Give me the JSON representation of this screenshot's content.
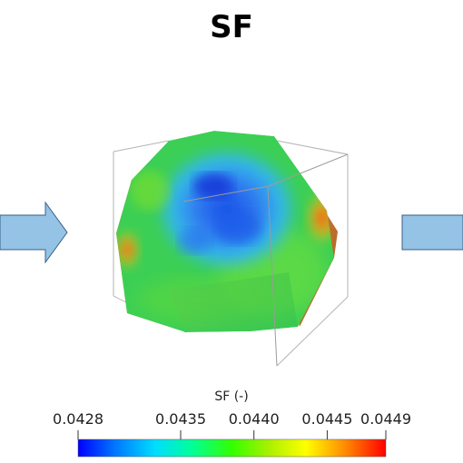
{
  "title": "SF",
  "colorbar": {
    "title": "SF (-)",
    "min": 0.0428,
    "max": 0.0449,
    "ticks": [
      "0.0428",
      "0.0435",
      "0.0440",
      "0.0445",
      "0.0449"
    ],
    "tick_values": [
      0.0428,
      0.0435,
      0.044,
      0.0445,
      0.0449
    ],
    "colormap": [
      "#0000ff",
      "#00aaff",
      "#00ffff",
      "#00ff66",
      "#55ee00",
      "#ccee00",
      "#ffff00",
      "#ff9900",
      "#ff0000"
    ]
  },
  "arrows": {
    "fill": "#95c3e6",
    "stroke": "#3a5f86"
  }
}
